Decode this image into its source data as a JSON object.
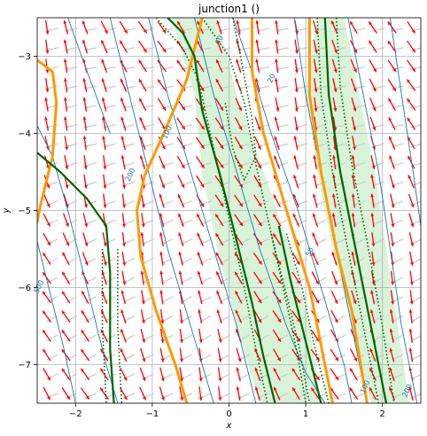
{
  "chart_data": {
    "type": "vector-field",
    "title": "junction1 ()",
    "xlabel": "x",
    "ylabel": "y",
    "xlim": [
      -2.5,
      2.5
    ],
    "ylim": [
      -7.5,
      -2.5
    ],
    "xticks": [
      -2,
      -1,
      0,
      1,
      2
    ],
    "yticks": [
      -3,
      -4,
      -5,
      -6,
      -7
    ],
    "grid": true,
    "colors": {
      "arrow_primary": "#ff0000",
      "arrow_secondary": "#cccccc",
      "contour": "#1f77b4",
      "orange_curve": "#ff9900",
      "green_curve": "#006400",
      "green_band": "#c8eec8"
    },
    "contour_labels": [
      {
        "text": "10",
        "x": -0.1,
        "y": -2.8
      },
      {
        "text": "20",
        "x": 0.58,
        "y": -3.3
      },
      {
        "text": "100",
        "x": -0.78,
        "y": -4.0
      },
      {
        "text": "200",
        "x": -1.26,
        "y": -4.55
      },
      {
        "text": "50",
        "x": 1.08,
        "y": -5.55
      },
      {
        "text": "500",
        "x": -2.45,
        "y": -6.0
      },
      {
        "text": "100",
        "x": 1.8,
        "y": -7.3
      },
      {
        "text": "200",
        "x": 2.35,
        "y": -7.35
      }
    ],
    "contours": [
      [
        [
          -1.55,
          -2.5
        ],
        [
          -1.3,
          -3.5
        ],
        [
          -1.05,
          -4.5
        ],
        [
          -0.8,
          -5.5
        ],
        [
          -0.5,
          -6.5
        ],
        [
          -0.2,
          -7.5
        ]
      ],
      [
        [
          -1.05,
          -2.5
        ],
        [
          -0.8,
          -3.5
        ],
        [
          -0.5,
          -4.5
        ],
        [
          -0.2,
          -5.5
        ],
        [
          0.1,
          -6.5
        ],
        [
          0.35,
          -7.5
        ]
      ],
      [
        [
          -0.45,
          -2.5
        ],
        [
          -0.2,
          -3.5
        ],
        [
          0.1,
          -4.5
        ],
        [
          0.4,
          -5.5
        ],
        [
          0.75,
          -6.5
        ],
        [
          1.0,
          -7.1
        ],
        [
          1.25,
          -7.5
        ]
      ],
      [
        [
          0.05,
          -2.5
        ],
        [
          0.3,
          -3.2
        ],
        [
          0.55,
          -4.0
        ],
        [
          0.9,
          -5.0
        ],
        [
          1.2,
          -6.0
        ],
        [
          1.5,
          -7.0
        ],
        [
          1.6,
          -7.5
        ]
      ],
      [
        [
          0.85,
          -2.5
        ],
        [
          1.0,
          -3.5
        ],
        [
          1.2,
          -4.5
        ],
        [
          1.4,
          -5.5
        ],
        [
          1.6,
          -6.5
        ],
        [
          1.8,
          -7.5
        ]
      ],
      [
        [
          1.55,
          -2.5
        ],
        [
          1.75,
          -3.5
        ],
        [
          1.95,
          -4.5
        ],
        [
          2.1,
          -5.5
        ],
        [
          2.25,
          -6.5
        ],
        [
          2.45,
          -7.5
        ]
      ],
      [
        [
          2.1,
          -2.5
        ],
        [
          2.25,
          -3.5
        ],
        [
          2.4,
          -4.5
        ],
        [
          2.5,
          -5.2
        ]
      ],
      [
        [
          -2.5,
          -3.9
        ],
        [
          -2.3,
          -4.3
        ],
        [
          -2.1,
          -5.0
        ],
        [
          -1.85,
          -6.0
        ],
        [
          -1.6,
          -7.0
        ],
        [
          -1.45,
          -7.5
        ]
      ],
      [
        [
          -2.5,
          -5.4
        ],
        [
          -2.35,
          -6.0
        ],
        [
          -2.15,
          -6.8
        ],
        [
          -2.0,
          -7.5
        ]
      ],
      [
        [
          -2.1,
          -2.5
        ],
        [
          -1.85,
          -3.2
        ],
        [
          -1.55,
          -4.0
        ]
      ]
    ],
    "orange_curves": [
      [
        [
          -2.5,
          -3.05
        ],
        [
          -2.3,
          -3.2
        ],
        [
          -2.25,
          -3.6
        ],
        [
          -2.3,
          -4.3
        ],
        [
          -2.45,
          -4.9
        ],
        [
          -2.5,
          -5.15
        ]
      ],
      [
        [
          -0.35,
          -2.5
        ],
        [
          -0.55,
          -3.3
        ],
        [
          -0.85,
          -4.0
        ],
        [
          -1.1,
          -4.55
        ],
        [
          -1.2,
          -5.0
        ],
        [
          -1.15,
          -5.6
        ],
        [
          -0.95,
          -6.3
        ],
        [
          -0.7,
          -7.0
        ],
        [
          -0.55,
          -7.5
        ]
      ],
      [
        [
          0.3,
          -2.5
        ],
        [
          0.3,
          -3.2
        ],
        [
          0.45,
          -4.0
        ],
        [
          0.75,
          -5.0
        ],
        [
          1.05,
          -6.0
        ],
        [
          1.25,
          -7.0
        ],
        [
          1.35,
          -7.5
        ]
      ],
      [
        [
          1.05,
          -2.5
        ],
        [
          1.05,
          -3.5
        ],
        [
          1.2,
          -4.5
        ],
        [
          1.4,
          -5.5
        ],
        [
          1.6,
          -6.3
        ],
        [
          1.8,
          -7.5
        ]
      ]
    ],
    "green_curves": [
      [
        [
          -2.5,
          -4.25
        ],
        [
          -2.2,
          -4.5
        ],
        [
          -1.85,
          -4.85
        ],
        [
          -1.6,
          -5.2
        ],
        [
          -1.55,
          -5.8
        ],
        [
          -1.55,
          -6.8
        ],
        [
          -1.5,
          -7.5
        ]
      ],
      [
        [
          -0.8,
          -2.5
        ],
        [
          -0.6,
          -2.7
        ],
        [
          -0.45,
          -3.0
        ],
        [
          -0.35,
          -3.7
        ],
        [
          -0.1,
          -4.6
        ],
        [
          0.1,
          -5.4
        ],
        [
          0.3,
          -6.2
        ],
        [
          0.45,
          -6.9
        ],
        [
          0.6,
          -7.5
        ]
      ],
      [
        [
          0.65,
          -5.2
        ],
        [
          0.8,
          -5.9
        ],
        [
          0.95,
          -6.5
        ],
        [
          1.1,
          -7.1
        ],
        [
          1.2,
          -7.5
        ]
      ],
      [
        [
          1.25,
          -2.5
        ],
        [
          1.3,
          -3.5
        ],
        [
          1.45,
          -4.5
        ],
        [
          1.65,
          -5.5
        ],
        [
          1.85,
          -6.5
        ],
        [
          2.05,
          -7.5
        ]
      ]
    ],
    "green_bands": [
      [
        [
          -0.75,
          -2.5
        ],
        [
          -0.15,
          -2.5
        ],
        [
          0.1,
          -3.5
        ],
        [
          0.45,
          -4.5
        ],
        [
          0.8,
          -5.5
        ],
        [
          1.05,
          -6.5
        ],
        [
          1.2,
          -7.5
        ],
        [
          0.4,
          -7.5
        ],
        [
          0.1,
          -6.5
        ],
        [
          -0.15,
          -5.5
        ],
        [
          -0.35,
          -4.5
        ],
        [
          -0.45,
          -3.5
        ]
      ],
      [
        [
          1.15,
          -2.5
        ],
        [
          1.5,
          -2.5
        ],
        [
          1.7,
          -3.5
        ],
        [
          1.9,
          -4.5
        ],
        [
          2.05,
          -5.5
        ],
        [
          2.2,
          -6.5
        ],
        [
          2.35,
          -7.5
        ],
        [
          1.85,
          -7.5
        ],
        [
          1.6,
          -6.5
        ],
        [
          1.35,
          -5.5
        ],
        [
          1.15,
          -4.5
        ],
        [
          1.0,
          -3.5
        ]
      ]
    ],
    "dotted_curves": [
      [
        [
          -0.95,
          -2.5
        ],
        [
          -0.6,
          -2.9
        ],
        [
          -0.4,
          -3.3
        ],
        [
          -0.2,
          -4.2
        ],
        [
          0.0,
          -5.1
        ],
        [
          0.2,
          -6.0
        ],
        [
          0.35,
          -6.8
        ],
        [
          0.5,
          -7.5
        ]
      ],
      [
        [
          -0.35,
          -2.5
        ],
        [
          0.0,
          -3.0
        ],
        [
          0.2,
          -3.6
        ],
        [
          0.35,
          -4.4
        ],
        [
          0.55,
          -5.3
        ],
        [
          0.75,
          -6.2
        ],
        [
          0.9,
          -6.9
        ],
        [
          1.0,
          -7.5
        ]
      ],
      [
        [
          0.05,
          -2.5
        ],
        [
          0.15,
          -3.0
        ],
        [
          0.3,
          -3.8
        ],
        [
          0.35,
          -4.3
        ],
        [
          0.2,
          -4.6
        ],
        [
          0.05,
          -4.2
        ],
        [
          -0.05,
          -3.6
        ]
      ],
      [
        [
          1.15,
          -2.5
        ],
        [
          1.2,
          -3.5
        ],
        [
          1.35,
          -4.5
        ],
        [
          1.55,
          -5.5
        ],
        [
          1.75,
          -6.5
        ],
        [
          1.95,
          -7.5
        ]
      ],
      [
        [
          1.4,
          -2.5
        ],
        [
          1.45,
          -3.4
        ],
        [
          1.6,
          -4.4
        ],
        [
          1.8,
          -5.4
        ],
        [
          2.0,
          -6.5
        ],
        [
          2.15,
          -7.5
        ]
      ],
      [
        [
          0.55,
          -5.3
        ],
        [
          0.75,
          -6.1
        ],
        [
          0.9,
          -6.7
        ],
        [
          1.05,
          -7.5
        ]
      ],
      [
        [
          0.75,
          -5.3
        ],
        [
          0.95,
          -6.0
        ],
        [
          1.1,
          -6.7
        ],
        [
          1.3,
          -7.5
        ]
      ],
      [
        [
          -1.65,
          -5.5
        ],
        [
          -1.65,
          -6.5
        ],
        [
          -1.6,
          -7.5
        ]
      ],
      [
        [
          -1.45,
          -5.5
        ],
        [
          -1.45,
          -6.5
        ],
        [
          -1.4,
          -7.5
        ]
      ]
    ]
  }
}
